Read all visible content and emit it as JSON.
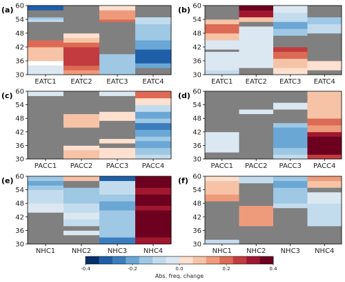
{
  "colors": {
    "missing": "#808080",
    "levels": [
      "#08306b",
      "#1f5fa8",
      "#3b7dbd",
      "#6aa7d5",
      "#9ec8e4",
      "#c3dced",
      "#dbe8f2",
      "#fde0cf",
      "#f6c3a6",
      "#ee9b7c",
      "#dc6a55",
      "#c23b3e",
      "#a1172f",
      "#6d001f"
    ]
  },
  "y_ticks": [
    30,
    36,
    42,
    48,
    54,
    60
  ],
  "colorbar": {
    "label": "Abs. freq. change",
    "ticks": [
      "-0.4",
      "-0.2",
      "0.0",
      "0.2",
      "0.4"
    ],
    "tick_values": [
      -0.4,
      -0.2,
      0.0,
      0.2,
      0.4
    ],
    "range": [
      -0.4,
      0.4
    ]
  },
  "chart_data": [
    {
      "type": "heatmap",
      "label": "(a)",
      "categories": [
        "EATC1",
        "EATC2",
        "EATC3",
        "EATC4"
      ],
      "ylim": [
        30,
        60
      ],
      "columns": [
        [
          [
            30,
            34,
            -0.04
          ],
          [
            36,
            42,
            0.08
          ],
          [
            42,
            45,
            0.2
          ],
          [
            45,
            53,
            null
          ],
          [
            53,
            54,
            -0.1
          ],
          [
            54,
            55,
            -0.15
          ],
          [
            55,
            58,
            null
          ],
          [
            58,
            60,
            -0.3
          ]
        ],
        [
          [
            30,
            32,
            0.14
          ],
          [
            32,
            34,
            0.2
          ],
          [
            34,
            42,
            0.28
          ],
          [
            42,
            44,
            0.18
          ],
          [
            44,
            46,
            0.06
          ],
          [
            46,
            48,
            0.02
          ],
          [
            48,
            60,
            null
          ]
        ],
        [
          [
            30,
            39,
            -0.12
          ],
          [
            39,
            53,
            null
          ],
          [
            53,
            54,
            0.2
          ],
          [
            54,
            58,
            0.12
          ],
          [
            58,
            60,
            0.02
          ]
        ],
        [
          [
            30,
            33,
            null
          ],
          [
            33,
            35,
            -0.22
          ],
          [
            35,
            41,
            -0.34
          ],
          [
            41,
            45,
            -0.22
          ],
          [
            45,
            52,
            -0.16
          ],
          [
            52,
            55,
            -0.08
          ],
          [
            55,
            60,
            null
          ]
        ]
      ]
    },
    {
      "type": "heatmap",
      "label": "(b)",
      "categories": [
        "EATC1",
        "EATC2",
        "EATC3",
        "EATC4"
      ],
      "ylim": [
        30,
        60
      ],
      "columns": [
        [
          [
            30,
            32,
            -0.08
          ],
          [
            32,
            40,
            -0.04
          ],
          [
            40,
            41,
            null
          ],
          [
            41,
            45,
            -0.04
          ],
          [
            45,
            48,
            0.06
          ],
          [
            48,
            52,
            0.18
          ],
          [
            52,
            54,
            0.1
          ],
          [
            54,
            60,
            null
          ]
        ],
        [
          [
            30,
            33,
            null
          ],
          [
            33,
            44,
            -0.04
          ],
          [
            44,
            47,
            -0.04
          ],
          [
            47,
            51,
            -0.04
          ],
          [
            51,
            53,
            null
          ],
          [
            53,
            55,
            0.1
          ],
          [
            55,
            58,
            0.34
          ],
          [
            58,
            60,
            0.4
          ]
        ],
        [
          [
            30,
            33,
            0.02
          ],
          [
            33,
            37,
            0.06
          ],
          [
            37,
            40,
            0.18
          ],
          [
            40,
            42,
            0.24
          ],
          [
            42,
            47,
            null
          ],
          [
            47,
            50,
            -0.16
          ],
          [
            50,
            53,
            -0.2
          ],
          [
            53,
            57,
            -0.08
          ],
          [
            57,
            60,
            -0.04
          ]
        ],
        [
          [
            30,
            32,
            null
          ],
          [
            32,
            36,
            0.05
          ],
          [
            36,
            41,
            null
          ],
          [
            41,
            48,
            null
          ],
          [
            48,
            52,
            -0.06
          ],
          [
            52,
            55,
            -0.12
          ],
          [
            55,
            60,
            null
          ]
        ]
      ]
    },
    {
      "type": "heatmap",
      "label": "(c)",
      "categories": [
        "PACC1",
        "PACC2",
        "PACC3",
        "PACC4"
      ],
      "ylim": [
        30,
        60
      ],
      "columns": [
        [
          [
            30,
            58,
            null
          ],
          [
            58,
            60,
            -0.03
          ]
        ],
        [
          [
            30,
            32,
            0.06
          ],
          [
            32,
            34,
            0.1
          ],
          [
            34,
            36,
            0.02
          ],
          [
            36,
            44,
            null
          ],
          [
            44,
            47,
            0.08
          ],
          [
            47,
            50,
            0.1
          ],
          [
            50,
            60,
            null
          ]
        ],
        [
          [
            30,
            35,
            0.04
          ],
          [
            35,
            37,
            null
          ],
          [
            37,
            39,
            0.02
          ],
          [
            39,
            47,
            null
          ],
          [
            47,
            51,
            0.02
          ],
          [
            51,
            58,
            null
          ],
          [
            58,
            60,
            -0.05
          ]
        ],
        [
          [
            30,
            32,
            -0.08
          ],
          [
            32,
            35,
            -0.15
          ],
          [
            35,
            38,
            -0.2
          ],
          [
            38,
            40,
            -0.12
          ],
          [
            40,
            43,
            -0.18
          ],
          [
            43,
            46,
            -0.24
          ],
          [
            46,
            48,
            -0.14
          ],
          [
            48,
            51,
            -0.2
          ],
          [
            51,
            54,
            -0.1
          ],
          [
            54,
            57,
            0.04
          ],
          [
            57,
            60,
            0.2
          ]
        ]
      ]
    },
    {
      "type": "heatmap",
      "label": "(d)",
      "categories": [
        "PACC1",
        "PACC2",
        "PACC3",
        "PACC4"
      ],
      "ylim": [
        30,
        60
      ],
      "columns": [
        [
          [
            30,
            33,
            null
          ],
          [
            33,
            42,
            -0.04
          ],
          [
            42,
            60,
            null
          ]
        ],
        [
          [
            30,
            50,
            null
          ],
          [
            50,
            52,
            -0.02
          ],
          [
            52,
            60,
            null
          ]
        ],
        [
          [
            30,
            32,
            -0.06
          ],
          [
            32,
            35,
            -0.12
          ],
          [
            35,
            39,
            -0.18
          ],
          [
            39,
            44,
            -0.2
          ],
          [
            44,
            46,
            -0.12
          ],
          [
            46,
            52,
            null
          ],
          [
            52,
            55,
            -0.04
          ],
          [
            55,
            60,
            null
          ]
        ],
        [
          [
            30,
            32,
            0.28
          ],
          [
            32,
            34,
            0.36
          ],
          [
            34,
            37,
            0.4
          ],
          [
            37,
            40,
            0.38
          ],
          [
            40,
            42,
            0.3
          ],
          [
            42,
            45,
            0.14
          ],
          [
            45,
            48,
            0.22
          ],
          [
            48,
            60,
            0.06
          ]
        ]
      ]
    },
    {
      "type": "heatmap",
      "label": "(e)",
      "categories": [
        "NHC1",
        "NHC2",
        "NHC3",
        "NHC4"
      ],
      "ylim": [
        30,
        60
      ],
      "columns": [
        [
          [
            30,
            44,
            null
          ],
          [
            44,
            48,
            -0.04
          ],
          [
            48,
            51,
            -0.08
          ],
          [
            51,
            54,
            -0.1
          ],
          [
            54,
            56,
            -0.16
          ],
          [
            56,
            58,
            -0.2
          ],
          [
            58,
            60,
            -0.14
          ]
        ],
        [
          [
            30,
            34,
            null
          ],
          [
            34,
            36,
            -0.03
          ],
          [
            36,
            38,
            null
          ],
          [
            38,
            41,
            -0.06
          ],
          [
            41,
            44,
            -0.03
          ],
          [
            44,
            48,
            -0.1
          ],
          [
            48,
            52,
            -0.12
          ],
          [
            52,
            55,
            -0.16
          ],
          [
            55,
            58,
            null
          ],
          [
            58,
            60,
            0.06
          ]
        ],
        [
          [
            30,
            33,
            -0.24
          ],
          [
            33,
            40,
            -0.16
          ],
          [
            40,
            45,
            -0.12
          ],
          [
            45,
            49,
            -0.18
          ],
          [
            49,
            52,
            -0.14
          ],
          [
            52,
            58,
            -0.1
          ],
          [
            58,
            60,
            -0.34
          ]
        ],
        [
          [
            30,
            33,
            0.34
          ],
          [
            33,
            36,
            0.4
          ],
          [
            36,
            39,
            0.36
          ],
          [
            39,
            45,
            0.38
          ],
          [
            45,
            47,
            0.34
          ],
          [
            47,
            52,
            0.38
          ],
          [
            52,
            55,
            0.34
          ],
          [
            55,
            58,
            0.4
          ],
          [
            58,
            60,
            0.36
          ]
        ]
      ]
    },
    {
      "type": "heatmap",
      "label": "(f)",
      "categories": [
        "NHC1",
        "NHC2",
        "NHC3",
        "NHC4"
      ],
      "ylim": [
        30,
        60
      ],
      "columns": [
        [
          [
            30,
            32,
            -0.06
          ],
          [
            32,
            49,
            null
          ],
          [
            49,
            52,
            0.14
          ],
          [
            52,
            55,
            0.06
          ],
          [
            55,
            58,
            0.1
          ],
          [
            58,
            60,
            0.04
          ]
        ],
        [
          [
            30,
            38,
            null
          ],
          [
            38,
            47,
            0.12
          ],
          [
            47,
            57,
            null
          ],
          [
            57,
            60,
            -0.06
          ]
        ],
        [
          [
            30,
            46,
            null
          ],
          [
            46,
            48,
            -0.06
          ],
          [
            48,
            52,
            -0.12
          ],
          [
            52,
            55,
            -0.16
          ],
          [
            55,
            58,
            -0.2
          ],
          [
            58,
            60,
            -0.12
          ]
        ],
        [
          [
            30,
            38,
            null
          ],
          [
            38,
            48,
            -0.06
          ],
          [
            48,
            53,
            -0.04
          ],
          [
            53,
            55,
            null
          ],
          [
            55,
            58,
            0.1
          ],
          [
            58,
            60,
            0.16
          ]
        ]
      ]
    }
  ]
}
